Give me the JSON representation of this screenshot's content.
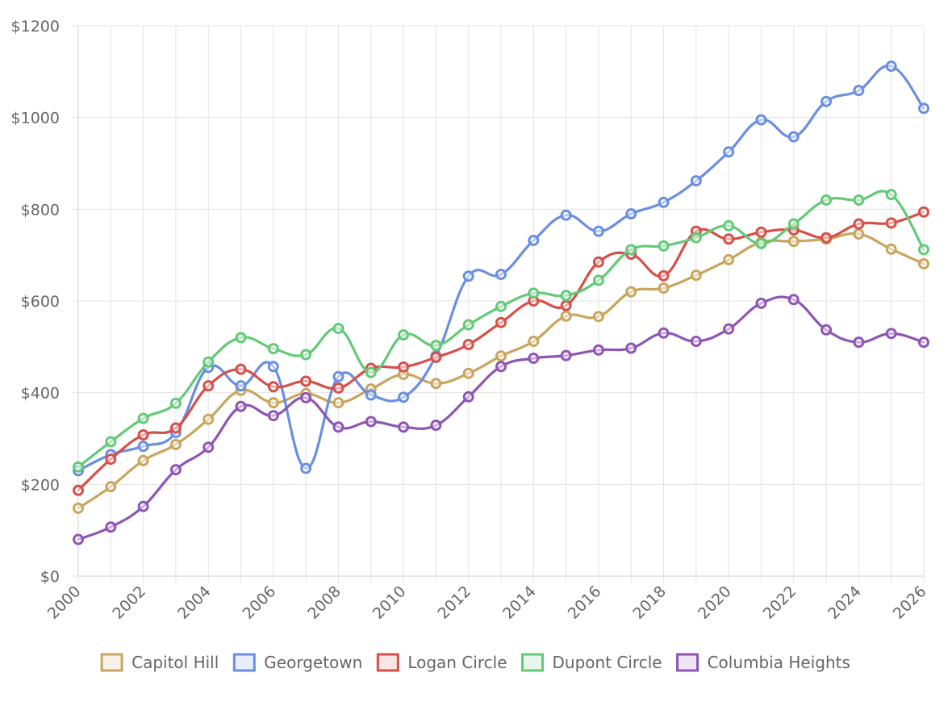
{
  "chart_data": {
    "type": "line",
    "title": "",
    "xlabel": "",
    "ylabel": "",
    "x": [
      2000,
      2001,
      2002,
      2003,
      2004,
      2005,
      2006,
      2007,
      2008,
      2009,
      2010,
      2011,
      2012,
      2013,
      2014,
      2015,
      2016,
      2017,
      2018,
      2019,
      2020,
      2021,
      2022,
      2023,
      2024,
      2025,
      2026
    ],
    "x_tick_labels": [
      "2000",
      "2002",
      "2004",
      "2006",
      "2008",
      "2010",
      "2012",
      "2014",
      "2016",
      "2018",
      "2020",
      "2022",
      "2024",
      "2026"
    ],
    "ylim": [
      0,
      1200
    ],
    "y_ticks": [
      0,
      200,
      400,
      600,
      800,
      1000,
      1200
    ],
    "y_tick_labels": [
      "$0",
      "$200",
      "$400",
      "$600",
      "$800",
      "$1000",
      "$1200"
    ],
    "grid": true,
    "legend_position": "bottom",
    "series": [
      {
        "name": "Capitol Hill",
        "color": "#c9a55d",
        "values": [
          148,
          195,
          252,
          287,
          342,
          405,
          378,
          398,
          378,
          408,
          440,
          420,
          442,
          480,
          512,
          567,
          566,
          620,
          628,
          656,
          690,
          728,
          730,
          735,
          746,
          713,
          681
        ]
      },
      {
        "name": "Georgetown",
        "color": "#6a8fe0",
        "values": [
          230,
          265,
          283,
          313,
          455,
          415,
          457,
          235,
          435,
          395,
          390,
          480,
          654,
          658,
          732,
          787,
          752,
          790,
          815,
          862,
          925,
          995,
          958,
          1035,
          1059,
          1112,
          1020
        ]
      },
      {
        "name": "Logan Circle",
        "color": "#d6504a",
        "values": [
          187,
          255,
          308,
          323,
          415,
          451,
          413,
          425,
          410,
          453,
          456,
          477,
          505,
          553,
          600,
          590,
          685,
          702,
          655,
          752,
          735,
          750,
          755,
          738,
          768,
          770,
          794
        ]
      },
      {
        "name": "Dupont Circle",
        "color": "#64c978",
        "values": [
          238,
          293,
          344,
          377,
          467,
          520,
          496,
          483,
          540,
          444,
          526,
          503,
          548,
          588,
          617,
          612,
          645,
          712,
          720,
          738,
          764,
          725,
          768,
          820,
          820,
          832,
          712
        ]
      },
      {
        "name": "Columbia Heights",
        "color": "#8e55b4",
        "values": [
          80,
          107,
          152,
          232,
          281,
          370,
          350,
          389,
          325,
          337,
          325,
          329,
          391,
          457,
          475,
          481,
          493,
          497,
          530,
          512,
          539,
          595,
          603,
          537,
          510,
          529,
          510
        ]
      }
    ]
  }
}
